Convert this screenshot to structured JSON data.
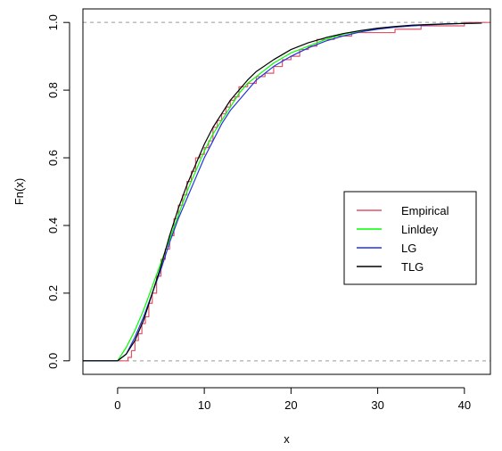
{
  "chart_data": {
    "type": "line",
    "title": "",
    "xlabel": "x",
    "ylabel": "Fn(x)",
    "xlim": [
      -4,
      43
    ],
    "ylim": [
      -0.04,
      1.04
    ],
    "x_ticks": [
      0,
      10,
      20,
      30,
      40
    ],
    "y_ticks": [
      0.0,
      0.2,
      0.4,
      0.6,
      0.8,
      1.0
    ],
    "x_tick_labels": [
      "0",
      "10",
      "20",
      "30",
      "40"
    ],
    "y_tick_labels": [
      "0.0",
      "0.2",
      "0.4",
      "0.6",
      "0.8",
      "1.0"
    ],
    "reference_lines": [
      0,
      1
    ],
    "legend_position": "center-right",
    "series": [
      {
        "name": "Empirical",
        "color": "#DF536B",
        "step": true,
        "x": [
          -4,
          0.8,
          1.2,
          1.6,
          2.0,
          2.4,
          2.8,
          3.2,
          3.6,
          4.0,
          4.5,
          5.0,
          5.5,
          6.0,
          6.5,
          7.0,
          7.5,
          8.0,
          8.5,
          9.0,
          9.5,
          10.0,
          10.5,
          11.0,
          11.5,
          12.0,
          12.5,
          13.0,
          13.5,
          14.0,
          15.0,
          16.0,
          17.0,
          18.0,
          19.0,
          20.0,
          21.0,
          22.0,
          23.0,
          24.0,
          25.0,
          26.0,
          27.0,
          28.0,
          29.0,
          30.0,
          31.0,
          32.0,
          33.0,
          35.0,
          38.0,
          40.0,
          41.0,
          43.0
        ],
        "y": [
          0.0,
          0.0,
          0.01,
          0.03,
          0.06,
          0.08,
          0.11,
          0.13,
          0.17,
          0.2,
          0.25,
          0.3,
          0.33,
          0.37,
          0.42,
          0.46,
          0.49,
          0.53,
          0.56,
          0.6,
          0.61,
          0.63,
          0.65,
          0.69,
          0.71,
          0.73,
          0.75,
          0.77,
          0.78,
          0.81,
          0.82,
          0.84,
          0.85,
          0.87,
          0.89,
          0.9,
          0.92,
          0.93,
          0.95,
          0.95,
          0.96,
          0.96,
          0.97,
          0.97,
          0.97,
          0.97,
          0.97,
          0.98,
          0.98,
          0.99,
          0.99,
          1.0,
          1.0,
          1.0
        ]
      },
      {
        "name": "Linldey",
        "color": "#00FF00",
        "step": false,
        "x": [
          -4,
          0,
          1,
          2,
          3,
          4,
          5,
          6,
          7,
          8,
          9,
          10,
          11,
          12,
          13,
          14,
          15,
          16,
          18,
          20,
          22,
          24,
          26,
          28,
          30,
          32,
          34,
          36,
          38,
          40,
          42
        ],
        "y": [
          0,
          0,
          0.04,
          0.09,
          0.15,
          0.22,
          0.29,
          0.36,
          0.43,
          0.5,
          0.56,
          0.62,
          0.67,
          0.71,
          0.75,
          0.79,
          0.82,
          0.84,
          0.88,
          0.91,
          0.93,
          0.95,
          0.965,
          0.975,
          0.982,
          0.987,
          0.991,
          0.994,
          0.996,
          0.997,
          0.998
        ]
      },
      {
        "name": "LG",
        "color": "#2233DD",
        "step": false,
        "x": [
          -4,
          0,
          1,
          2,
          3,
          4,
          5,
          6,
          7,
          8,
          9,
          10,
          11,
          12,
          13,
          14,
          15,
          16,
          18,
          20,
          22,
          24,
          26,
          28,
          30,
          32,
          34,
          36,
          38,
          40,
          42
        ],
        "y": [
          0,
          0,
          0.02,
          0.07,
          0.13,
          0.2,
          0.27,
          0.35,
          0.42,
          0.48,
          0.54,
          0.6,
          0.65,
          0.7,
          0.74,
          0.77,
          0.8,
          0.83,
          0.87,
          0.9,
          0.925,
          0.945,
          0.96,
          0.972,
          0.98,
          0.986,
          0.99,
          0.993,
          0.995,
          0.997,
          0.998
        ]
      },
      {
        "name": "TLG",
        "color": "#000000",
        "step": false,
        "x": [
          -4,
          0,
          1,
          2,
          3,
          4,
          5,
          6,
          7,
          8,
          9,
          10,
          11,
          12,
          13,
          14,
          15,
          16,
          18,
          20,
          22,
          24,
          26,
          28,
          30,
          32,
          34,
          36,
          38,
          40,
          42
        ],
        "y": [
          0,
          0,
          0.02,
          0.06,
          0.12,
          0.2,
          0.28,
          0.37,
          0.45,
          0.52,
          0.58,
          0.64,
          0.69,
          0.73,
          0.77,
          0.8,
          0.83,
          0.855,
          0.89,
          0.92,
          0.94,
          0.955,
          0.967,
          0.976,
          0.983,
          0.988,
          0.992,
          0.994,
          0.996,
          0.997,
          0.998
        ]
      }
    ],
    "legend": [
      "Empirical",
      "Linldey",
      "LG",
      "TLG"
    ]
  }
}
